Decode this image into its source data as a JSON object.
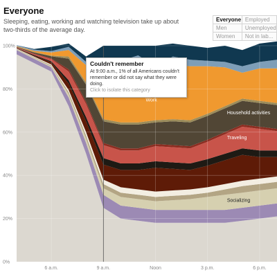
{
  "header": {
    "title": "Everyone",
    "subtitle": "Sleeping, eating, working and watching television take up about two-thirds of the average day."
  },
  "filters": [
    {
      "label": "Everyone",
      "active": true
    },
    {
      "label": "Employed",
      "active": false
    },
    {
      "label": "Men",
      "active": false
    },
    {
      "label": "Unemployed",
      "active": false
    },
    {
      "label": "Women",
      "active": false
    },
    {
      "label": "Not in lab...",
      "active": false
    }
  ],
  "tooltip": {
    "title": "Couldn't remember",
    "body": "At 9:00 a.m., 1% of all Americans couldn't remember or did not say what they were doing.",
    "link": "Click to isolate this category"
  },
  "chart_data": {
    "type": "area",
    "stacked": true,
    "xlabel": "",
    "ylabel": "",
    "ylim": [
      0,
      100
    ],
    "x": [
      "4 a.m.",
      "5 a.m.",
      "6 a.m.",
      "7 a.m.",
      "8 a.m.",
      "9 a.m.",
      "10 a.m.",
      "11 a.m.",
      "Noon",
      "1 p.m.",
      "2 p.m.",
      "3 p.m.",
      "4 p.m.",
      "5 p.m.",
      "6 p.m.",
      "6:30 p.m."
    ],
    "x_tick_labels": [
      "6 a.m.",
      "9 a.m.",
      "Noon",
      "3 p.m.",
      "6 p.m."
    ],
    "y_tick_labels": [
      "0%",
      "20%",
      "40%",
      "60%",
      "80%",
      "100%"
    ],
    "grid": true,
    "series": [
      {
        "name": "",
        "color": "#dcd8d0",
        "values": [
          96,
          92,
          88,
          72,
          50,
          25,
          20,
          19,
          18,
          18,
          18,
          18,
          18,
          19,
          20,
          21
        ]
      },
      {
        "name": "",
        "color": "#9c8ab4",
        "values": [
          2,
          2,
          2,
          4,
          5,
          6,
          6,
          6,
          6,
          6,
          6,
          6,
          6,
          6,
          6,
          6
        ]
      },
      {
        "name": "Socializing",
        "color": "#d6d0b0",
        "values": [
          0.3,
          0.4,
          0.5,
          1.5,
          2,
          3,
          4,
          4,
          4,
          4.5,
          5,
          6,
          7,
          7,
          7,
          7
        ]
      },
      {
        "name": "",
        "color": "#b3a584",
        "values": [
          0.2,
          0.3,
          0.4,
          1,
          1.5,
          2,
          2,
          2,
          2,
          2,
          2,
          2,
          2.5,
          3,
          3,
          3
        ]
      },
      {
        "name": "",
        "color": "#f3eee2",
        "values": [
          0.2,
          0.3,
          0.4,
          1,
          1.5,
          2,
          2.5,
          2.5,
          2.5,
          2.5,
          2.5,
          2.5,
          2.5,
          2.5,
          2.5,
          2.5
        ]
      },
      {
        "name": "",
        "color": "#5e1b07",
        "values": [
          0.2,
          0.4,
          1,
          3,
          5,
          7,
          8,
          9,
          11,
          10,
          9,
          10,
          11,
          12,
          10,
          9
        ]
      },
      {
        "name": "",
        "color": "#1e1a14",
        "values": [
          0.1,
          0.3,
          0.5,
          1.5,
          2,
          3,
          3,
          3,
          3,
          3,
          3,
          3,
          3,
          3,
          3,
          3
        ]
      },
      {
        "name": "Traveling",
        "color": "#c8544a",
        "values": [
          0.2,
          0.5,
          1,
          4,
          6,
          6,
          6,
          6,
          7,
          7,
          7,
          8,
          9,
          10,
          10,
          9
        ]
      },
      {
        "name": "",
        "color": "#8d2d21",
        "values": [
          0.1,
          0.2,
          0.3,
          1,
          1,
          1,
          1,
          1,
          1,
          1,
          1,
          1,
          1,
          1,
          1,
          1
        ]
      },
      {
        "name": "Household activities",
        "color": "#514635",
        "values": [
          0.2,
          0.5,
          1,
          5,
          8,
          10,
          11,
          11,
          10,
          11,
          11,
          11,
          11,
          11,
          11,
          11
        ]
      },
      {
        "name": "",
        "color": "#9c8c5a",
        "values": [
          0.1,
          0.2,
          0.3,
          1,
          1,
          1,
          1,
          1,
          1,
          1,
          1,
          1,
          1,
          1,
          1,
          1
        ]
      },
      {
        "name": "Work",
        "color": "#f0992f",
        "values": [
          0.2,
          0.5,
          1.5,
          3,
          8,
          22,
          26,
          27,
          19,
          25,
          25,
          22,
          18,
          12,
          15,
          16
        ]
      },
      {
        "name": "",
        "color": "#7e9eb8",
        "values": [
          0.5,
          0.6,
          0.6,
          1.5,
          1.5,
          2,
          2.5,
          4,
          6,
          4,
          3,
          2.5,
          2.5,
          3,
          3,
          4
        ]
      },
      {
        "name": "",
        "color": "#103850",
        "values": [
          0,
          0.3,
          2,
          1.5,
          2.5,
          10,
          7,
          4.5,
          9.5,
          6,
          6.5,
          6,
          7.5,
          7.5,
          8.5,
          8.5
        ]
      }
    ]
  }
}
